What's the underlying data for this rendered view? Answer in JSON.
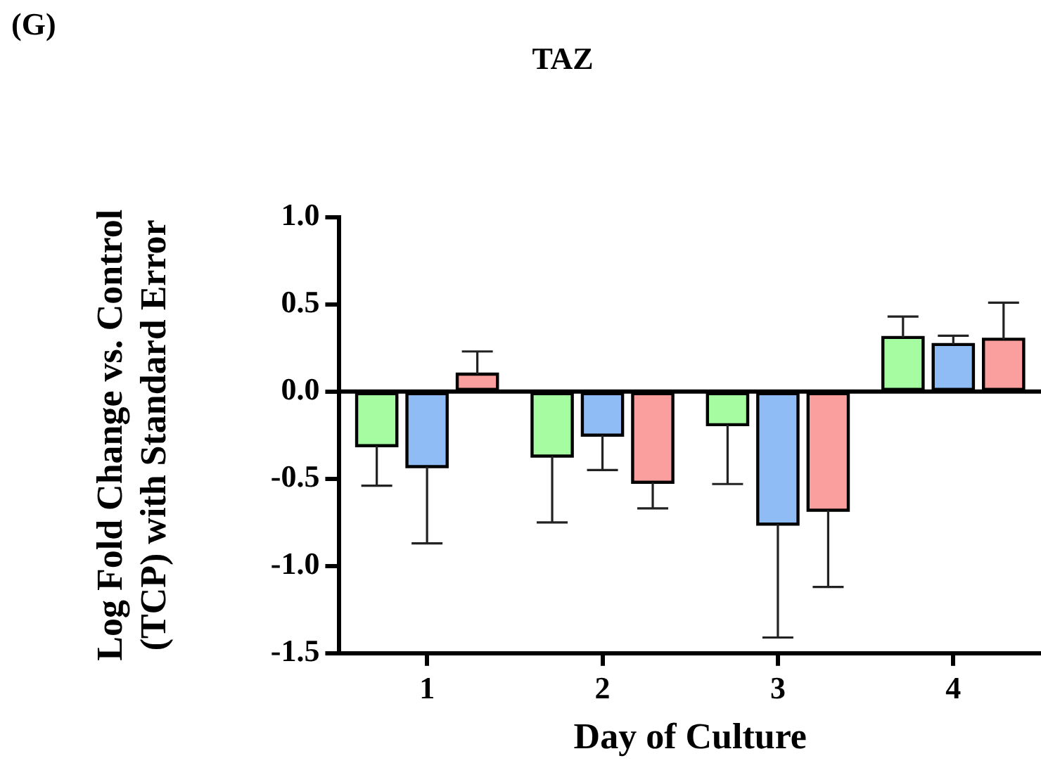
{
  "chart_data": {
    "type": "bar",
    "title": "TAZ",
    "xlabel": "Day of Culture",
    "ylabel": "Log Fold Change vs. Control\n(TCP) with Standard Error",
    "annotations": [
      "(G)"
    ],
    "categories": [
      "1",
      "2",
      "3",
      "4"
    ],
    "series": [
      {
        "color": "#a6fca0",
        "values": [
          -0.31,
          -0.37,
          -0.19,
          0.31
        ],
        "errors": [
          [
            -0.54,
            -0.31
          ],
          [
            -0.75,
            -0.37
          ],
          [
            -0.53,
            -0.19
          ],
          [
            0.31,
            0.43
          ]
        ]
      },
      {
        "color": "#8fbcf5",
        "values": [
          -0.43,
          -0.25,
          -0.76,
          0.27
        ],
        "errors": [
          [
            -0.87,
            -0.43
          ],
          [
            -0.45,
            -0.25
          ],
          [
            -1.41,
            -0.76
          ],
          [
            0.27,
            0.32
          ]
        ]
      },
      {
        "color": "#fa9e9e",
        "values": [
          0.1,
          -0.52,
          -0.68,
          0.3
        ],
        "errors": [
          [
            0.1,
            0.23
          ],
          [
            -0.67,
            -0.52
          ],
          [
            -1.12,
            -0.68
          ],
          [
            0.3,
            0.51
          ]
        ]
      }
    ],
    "ylim": [
      -1.5,
      1.0
    ],
    "yticks": [
      {
        "value": 1.0,
        "label": "1.0"
      },
      0.5,
      {
        "value": 0.0,
        "label": "0.0"
      },
      -0.5,
      {
        "value": -1.0,
        "label": "-1.0"
      },
      -1.5
    ],
    "ref_lines": [
      {
        "axis": "y",
        "value": 0,
        "color": "#000000"
      }
    ],
    "grid": false,
    "legend": false
  }
}
